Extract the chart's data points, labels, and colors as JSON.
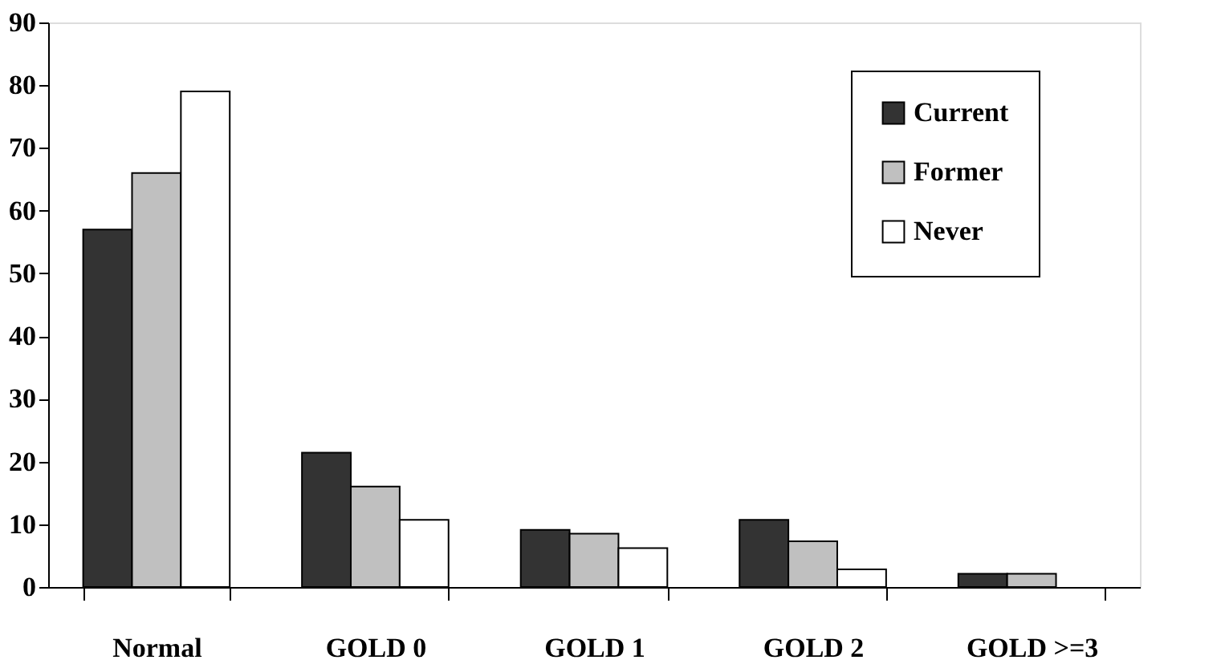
{
  "chart_data": {
    "type": "bar",
    "categories": [
      "Normal",
      "GOLD 0",
      "GOLD 1",
      "GOLD 2",
      "GOLD >=3"
    ],
    "series": [
      {
        "name": "Current",
        "color": "#333333",
        "values": [
          57,
          21.4,
          9.1,
          10.7,
          2.1
        ]
      },
      {
        "name": "Former",
        "color": "#c0c0c0",
        "values": [
          66,
          16,
          8.5,
          7.3,
          2.1
        ]
      },
      {
        "name": "Never",
        "color": "#ffffff",
        "values": [
          79,
          10.7,
          6.2,
          2.8,
          null
        ]
      }
    ],
    "ylim": [
      0,
      90
    ],
    "yticks": [
      0,
      10,
      20,
      30,
      40,
      50,
      60,
      70,
      80,
      90
    ],
    "grid": false,
    "legend": "top right"
  }
}
